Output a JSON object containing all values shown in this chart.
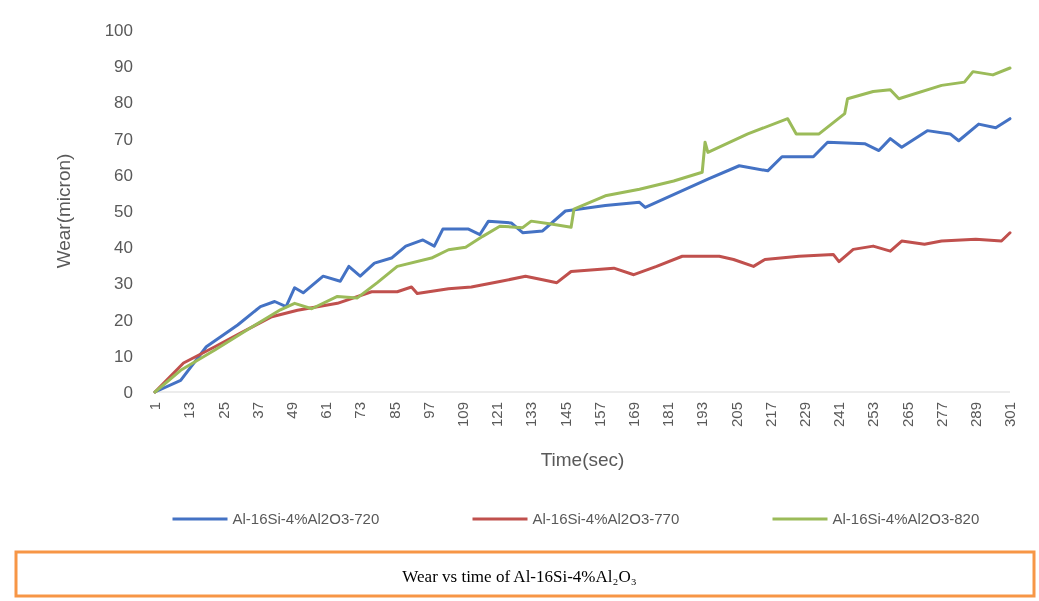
{
  "chart_data": {
    "type": "line",
    "xlabel": "Time(sec)",
    "ylabel": "Wear(micron)",
    "xlim": [
      1,
      301
    ],
    "xticks": [
      1,
      13,
      25,
      37,
      49,
      61,
      73,
      85,
      97,
      109,
      121,
      133,
      145,
      157,
      169,
      181,
      193,
      205,
      217,
      229,
      241,
      253,
      265,
      277,
      289,
      301
    ],
    "ylim": [
      0,
      100
    ],
    "yticks": [
      0,
      10,
      20,
      30,
      40,
      50,
      60,
      70,
      80,
      90,
      100
    ],
    "legend": "bottom",
    "marker": "none",
    "line_style": "solid",
    "annotations": [
      "Wear vs time of Al-16Si-4%Al₂O₃"
    ],
    "series": [
      {
        "name": "Al-16Si-4%Al2O3-720",
        "color": "#4472c4",
        "x": [
          1,
          10,
          19,
          30,
          38,
          43,
          47,
          50,
          53,
          60,
          66,
          69,
          73,
          78,
          84,
          89,
          95,
          99,
          102,
          111,
          115,
          118,
          126,
          130,
          137,
          145,
          159,
          171,
          173,
          195,
          206,
          216,
          221,
          232,
          237,
          250,
          255,
          259,
          263,
          272,
          280,
          283,
          290,
          296,
          301
        ],
        "values": [
          0,
          3.2,
          12.5,
          18.5,
          23.6,
          25,
          23.6,
          28.8,
          27.4,
          32,
          30.6,
          34.7,
          32,
          35.6,
          37,
          40.3,
          42,
          40.3,
          45,
          45,
          43.5,
          47.2,
          46.7,
          44,
          44.5,
          50,
          51.5,
          52.4,
          51,
          58.8,
          62.5,
          61.1,
          65,
          65,
          69,
          68.6,
          66.7,
          70,
          67.6,
          72.2,
          71.3,
          69.4,
          74,
          73,
          75.5
        ]
      },
      {
        "name": "Al-16Si-4%Al2O3-770",
        "color": "#c0504d",
        "x": [
          1,
          11,
          22,
          31,
          42,
          51,
          65,
          77,
          86,
          91,
          93,
          104,
          112,
          122,
          131,
          137,
          142,
          147,
          162,
          169,
          177,
          186,
          199,
          204,
          211,
          215,
          227,
          239,
          241,
          246,
          253,
          259,
          263,
          271,
          277,
          289,
          298,
          301
        ],
        "values": [
          0,
          8,
          12.5,
          16.3,
          20.8,
          22.6,
          24.5,
          27.7,
          27.7,
          29,
          27.2,
          28.5,
          29,
          30.5,
          32,
          31,
          30.2,
          33.3,
          34.2,
          32.4,
          34.7,
          37.5,
          37.5,
          36.6,
          34.7,
          36.6,
          37.5,
          38,
          36,
          39.4,
          40.3,
          38.9,
          41.7,
          40.8,
          41.7,
          42.2,
          41.7,
          44
        ]
      },
      {
        "name": "Al-16Si-4%Al2O3-820",
        "color": "#9bbb59",
        "x": [
          1,
          10,
          22,
          33,
          45,
          50,
          56,
          65,
          72,
          79,
          86,
          98,
          104,
          110,
          116,
          122,
          130,
          133,
          140,
          147,
          148,
          159,
          171,
          183,
          193,
          194,
          195,
          209,
          223,
          226,
          234,
          243,
          244,
          253,
          259,
          262,
          277,
          285,
          288,
          295,
          301
        ],
        "values": [
          0,
          6,
          11.6,
          17,
          22.7,
          24.5,
          23,
          26.4,
          26,
          30.2,
          34.7,
          37,
          39.3,
          40,
          43,
          45.8,
          45.4,
          47.2,
          46.4,
          45.5,
          50.5,
          54.2,
          56,
          58.3,
          60.7,
          69,
          66.2,
          71.3,
          75.5,
          71.3,
          71.3,
          76.9,
          81,
          83,
          83.5,
          81,
          84.7,
          85.6,
          88.5,
          87.6,
          89.5
        ]
      }
    ]
  }
}
